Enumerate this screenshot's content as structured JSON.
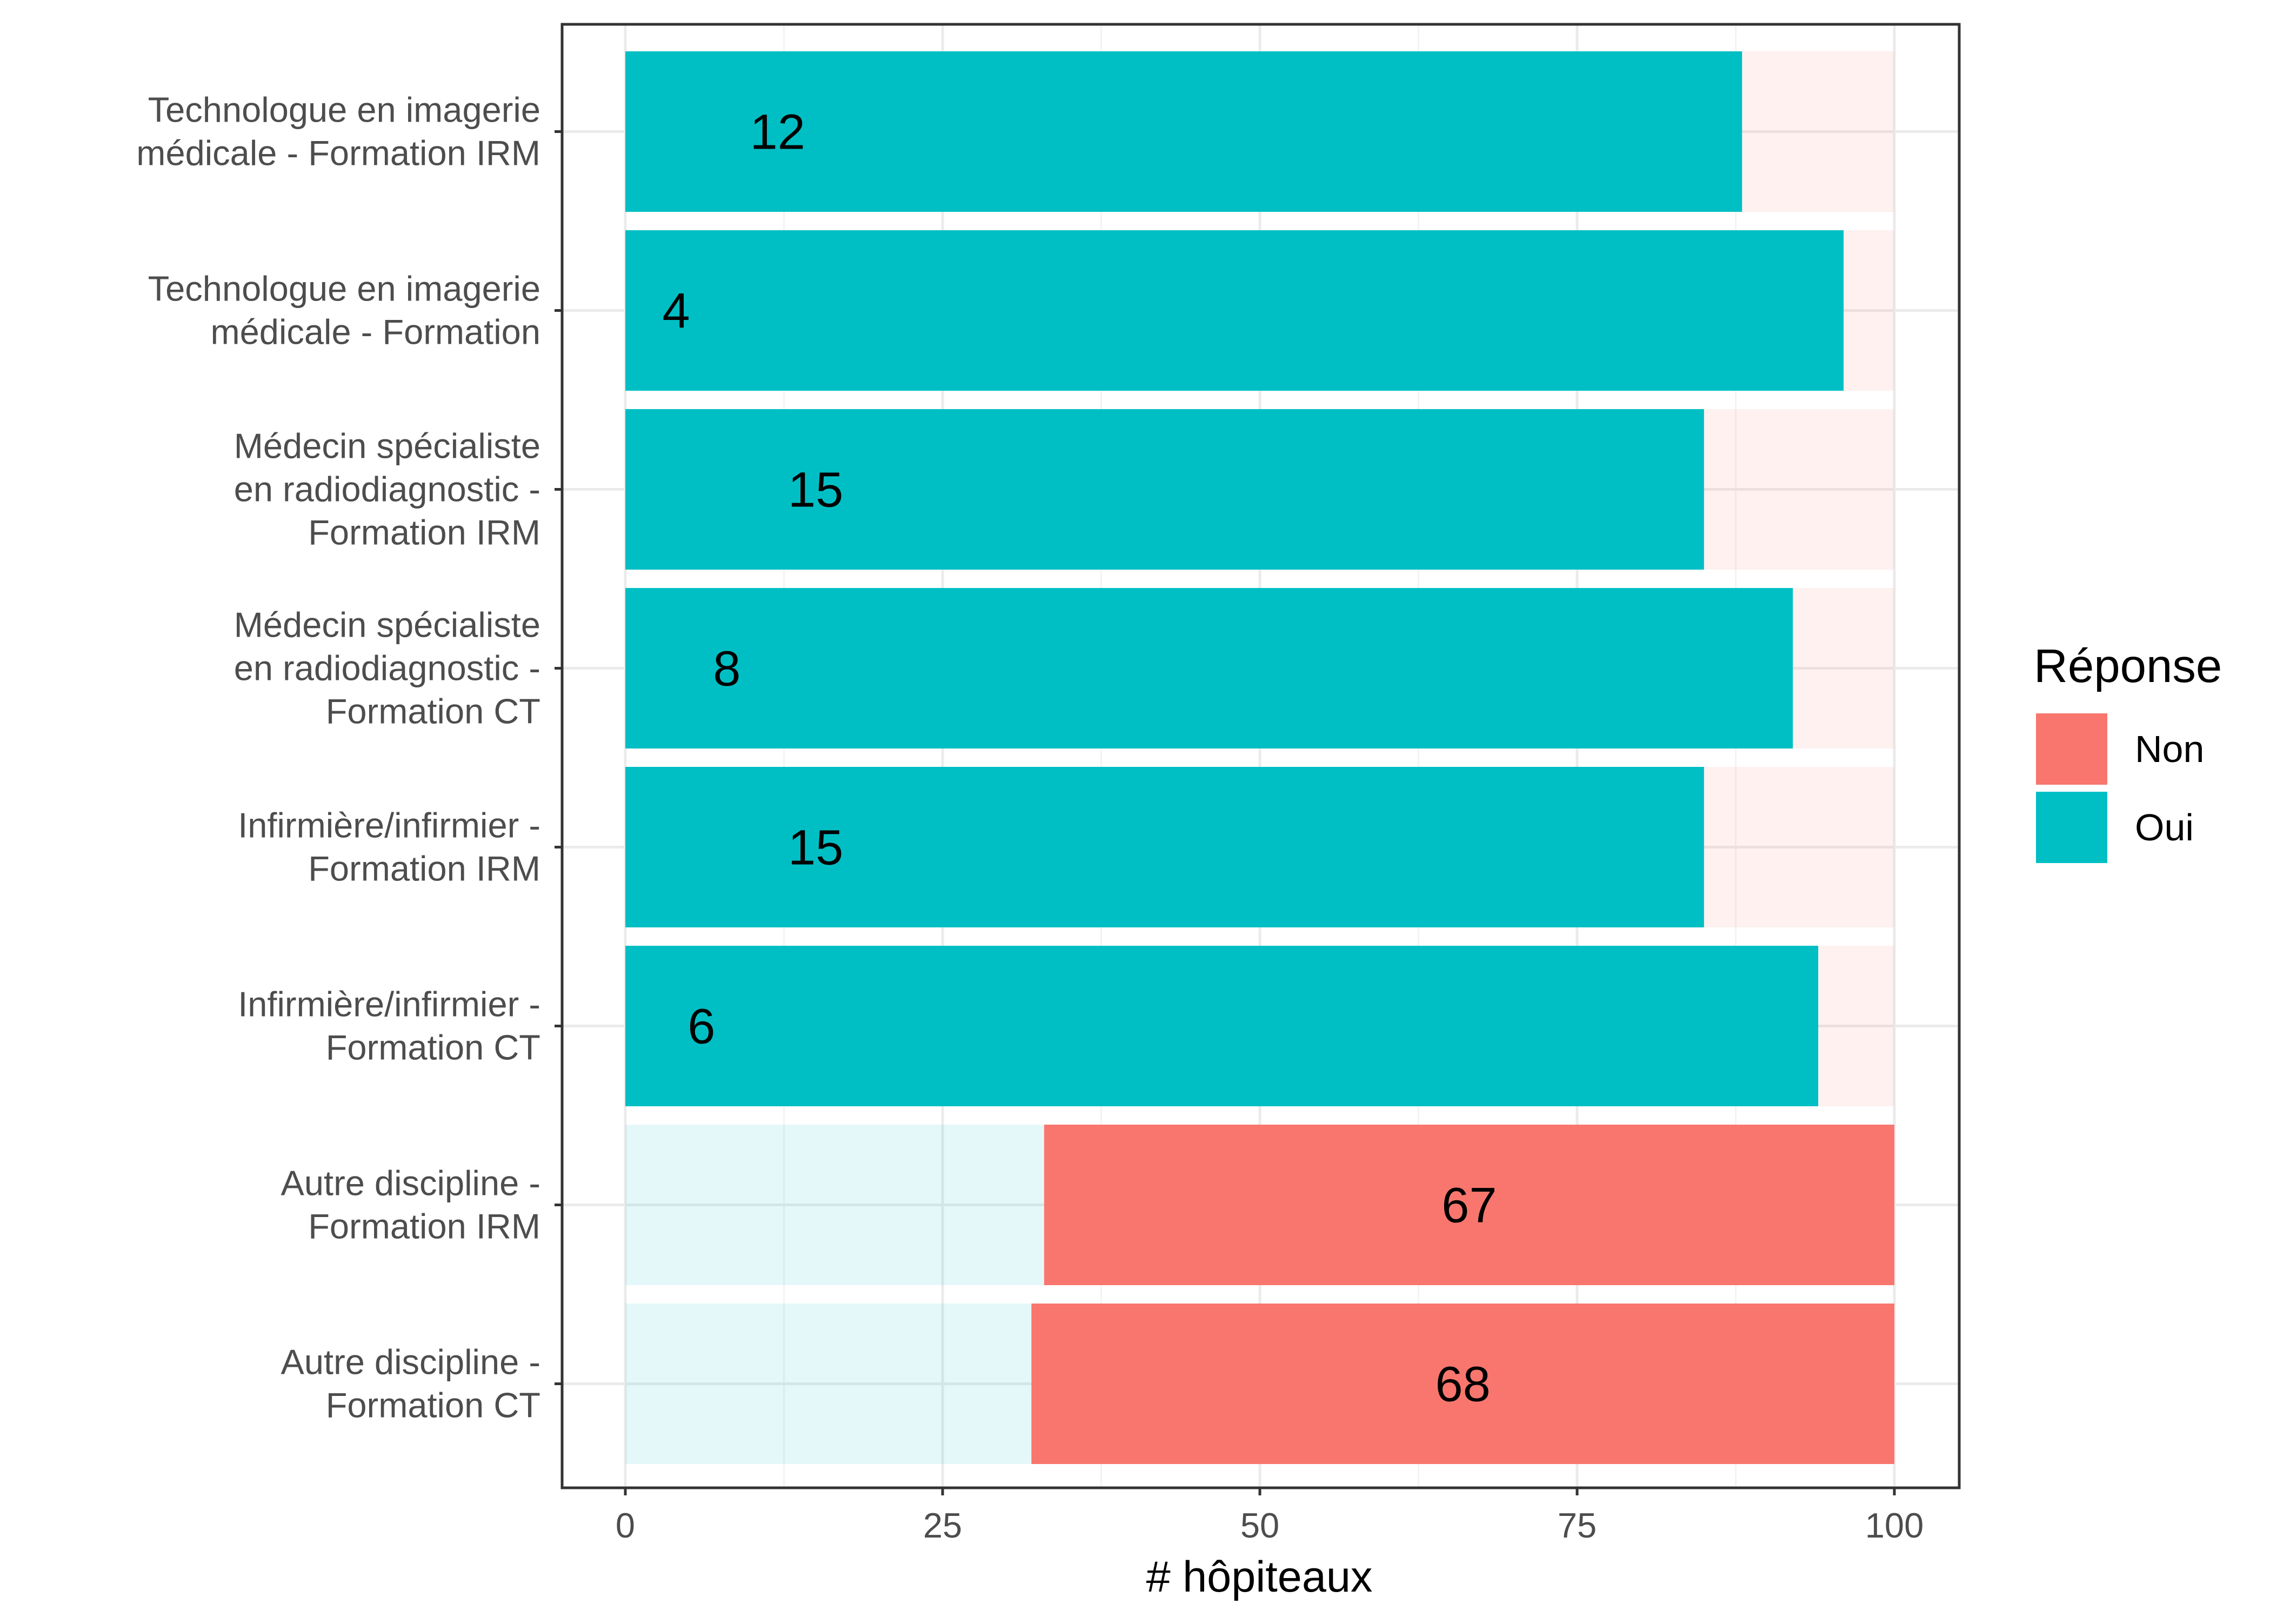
{
  "chart_data": {
    "type": "bar",
    "orientation": "horizontal",
    "stacked": true,
    "xlabel": "# hôpiteaux",
    "ylabel": "",
    "xlim": [
      0,
      100
    ],
    "xticks": [
      0,
      25,
      50,
      75,
      100
    ],
    "grid": true,
    "legend": {
      "title": "Réponse",
      "placement": "right",
      "entries": [
        {
          "name": "Non",
          "color": "#F8766D"
        },
        {
          "name": "Oui",
          "color": "#00BFC4"
        }
      ]
    },
    "categories": [
      [
        "Technologue en imagerie",
        "médicale - Formation IRM"
      ],
      [
        "Technologue en imagerie",
        "médicale - Formation"
      ],
      [
        "Médecin spécialiste",
        "en radiodiagnostic -",
        "Formation IRM"
      ],
      [
        "Médecin spécialiste",
        "en radiodiagnostic -",
        "Formation CT"
      ],
      [
        "Infirmière/infirmier -",
        "Formation IRM"
      ],
      [
        "Infirmière/infirmier -",
        "Formation CT"
      ],
      [
        "Autre discipline -",
        "Formation IRM"
      ],
      [
        "Autre discipline -",
        "Formation CT"
      ]
    ],
    "series": [
      {
        "name": "Oui",
        "color": "#00BFC4",
        "values": [
          88,
          96,
          85,
          92,
          85,
          94,
          33,
          32
        ]
      },
      {
        "name": "Non",
        "color": "#F8766D",
        "values": [
          12,
          4,
          15,
          8,
          15,
          6,
          67,
          68
        ]
      }
    ],
    "data_labels": [
      12,
      4,
      15,
      8,
      15,
      6,
      67,
      68
    ],
    "highlighted_series": [
      "Oui",
      "Oui",
      "Oui",
      "Oui",
      "Oui",
      "Oui",
      "Non",
      "Non"
    ]
  }
}
